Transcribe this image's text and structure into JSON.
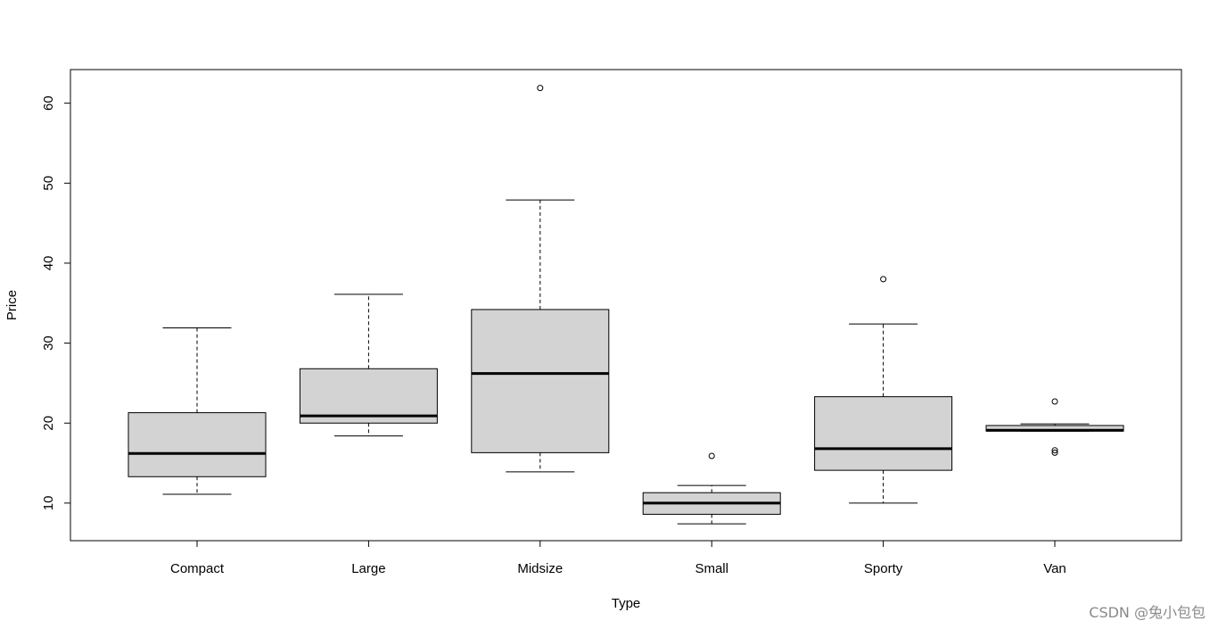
{
  "chart_data": {
    "type": "box",
    "xlabel": "Type",
    "ylabel": "Price",
    "categories": [
      "Compact",
      "Large",
      "Midsize",
      "Small",
      "Sporty",
      "Van"
    ],
    "yticks": [
      10,
      20,
      30,
      40,
      50,
      60
    ],
    "ylim": [
      5.3,
      64.2
    ],
    "grid": false,
    "box_fill": "#d3d3d3",
    "boxes": [
      {
        "category": "Compact",
        "whisker_low": 11.1,
        "q1": 13.3,
        "median": 16.2,
        "q3": 21.3,
        "whisker_high": 31.9,
        "outliers": []
      },
      {
        "category": "Large",
        "whisker_low": 18.4,
        "q1": 20.0,
        "median": 20.9,
        "q3": 26.8,
        "whisker_high": 36.1,
        "outliers": []
      },
      {
        "category": "Midsize",
        "whisker_low": 13.9,
        "q1": 16.3,
        "median": 26.2,
        "q3": 34.2,
        "whisker_high": 47.9,
        "outliers": [
          61.9
        ]
      },
      {
        "category": "Small",
        "whisker_low": 7.4,
        "q1": 8.6,
        "median": 10.0,
        "q3": 11.3,
        "whisker_high": 12.2,
        "outliers": [
          15.9
        ]
      },
      {
        "category": "Sporty",
        "whisker_low": 10.0,
        "q1": 14.1,
        "median": 16.8,
        "q3": 23.3,
        "whisker_high": 32.4,
        "outliers": [
          38.0
        ]
      },
      {
        "category": "Van",
        "whisker_low": 19.0,
        "q1": 19.0,
        "median": 19.1,
        "q3": 19.7,
        "whisker_high": 19.9,
        "outliers": [
          22.7,
          16.3,
          16.6
        ]
      }
    ]
  },
  "watermark": "CSDN @兔小包包"
}
